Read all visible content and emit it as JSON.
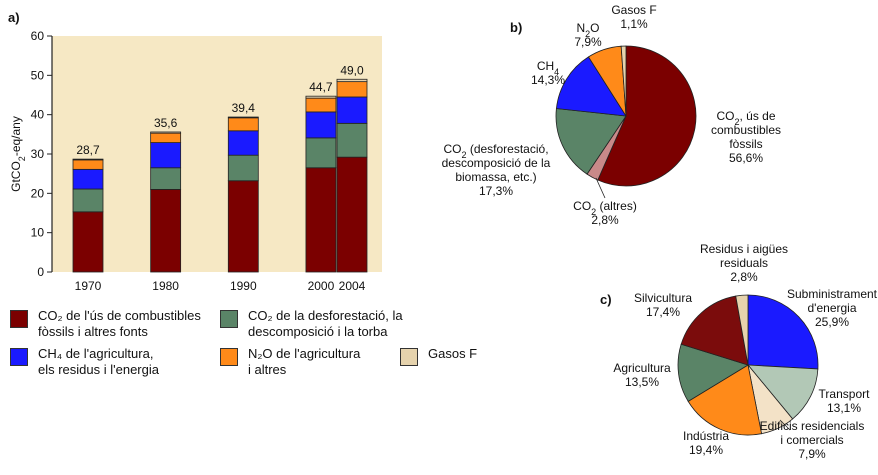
{
  "labels": {
    "a": "a)",
    "b": "b)",
    "c": "c)"
  },
  "colors": {
    "co2_fossil": "#7b0000",
    "co2_deforest": "#5a8467",
    "ch4": "#1a1aff",
    "n2o": "#ff8a19",
    "gases_f": "#e6d3ad",
    "co2_other": "#c98989",
    "silviculture": "#7b0c0c",
    "agriculture": "#5a8467",
    "industry": "#ff8a19",
    "buildings": "#f3e2c7",
    "transport": "#b2c8b6",
    "energy": "#1a1aff",
    "waste": "#e6d3ad",
    "plot_bg": "#f6e8c4"
  },
  "chart_data": [
    {
      "type": "bar",
      "ylabel": "GtCO2-eq/any",
      "ylim": [
        0,
        60
      ],
      "yticks": [
        0,
        10,
        20,
        30,
        40,
        50,
        60
      ],
      "categories": [
        "1970",
        "1980",
        "1990",
        "2000",
        "2004"
      ],
      "totals": [
        "28,7",
        "35,6",
        "39,4",
        "44,7",
        "49,0"
      ],
      "series": [
        {
          "name": "CO2 de l'ús de combustibles fòssils i altres fonts",
          "values": [
            15.3,
            21.0,
            23.2,
            26.5,
            29.2
          ]
        },
        {
          "name": "CO2 de la desforestació, la descomposició i la torba",
          "values": [
            5.8,
            5.5,
            6.5,
            7.6,
            8.6
          ]
        },
        {
          "name": "CH4 de l'agricultura, els residus i l'energia",
          "values": [
            5.0,
            6.4,
            6.2,
            6.6,
            6.7
          ]
        },
        {
          "name": "N2O de l'agricultura i altres",
          "values": [
            2.4,
            2.4,
            3.3,
            3.5,
            3.9
          ]
        },
        {
          "name": "Gasos F",
          "values": [
            0.2,
            0.3,
            0.2,
            0.5,
            0.6
          ]
        }
      ],
      "legend": [
        {
          "text": "CO₂ de l'ús de combustibles\nfòssils i altres fonts",
          "color": "co2_fossil"
        },
        {
          "text": "CO₂ de la desforestació, la\ndescomposició i la torba",
          "color": "co2_deforest"
        },
        {
          "text": "CH₄ de l'agricultura,\nels residus i l'energia",
          "color": "ch4"
        },
        {
          "text": "N₂O de l'agricultura\ni altres",
          "color": "n2o"
        },
        {
          "text": "Gasos F",
          "color": "gases_f"
        }
      ]
    },
    {
      "type": "pie",
      "slices": [
        {
          "name": "CO₂, ús de combustibles fòssils",
          "value": 56.6,
          "color": "co2_fossil",
          "label": [
            "CO₂, ús de",
            "combustibles",
            "fòssils",
            "56,6%"
          ]
        },
        {
          "name": "CO₂ (altres)",
          "value": 2.8,
          "color": "co2_other",
          "label": [
            "CO₂ (altres)",
            "2,8%"
          ]
        },
        {
          "name": "CO₂ (desforestació, descomposició de la biomassa, etc.)",
          "value": 17.3,
          "color": "co2_deforest",
          "label": [
            "CO₂ (desforestació,",
            "descomposició de la",
            "biomassa, etc.)",
            "17,3%"
          ]
        },
        {
          "name": "CH₄",
          "value": 14.3,
          "color": "ch4",
          "label": [
            "CH₄",
            "14,3%"
          ]
        },
        {
          "name": "N₂O",
          "value": 7.9,
          "color": "n2o",
          "label": [
            "N₂O",
            "7,9%"
          ]
        },
        {
          "name": "Gasos F",
          "value": 1.1,
          "color": "gases_f",
          "label": [
            "Gasos F",
            "1,1%"
          ]
        }
      ]
    },
    {
      "type": "pie",
      "slices": [
        {
          "name": "Subministrament d'energia",
          "value": 25.9,
          "color": "energy",
          "label": [
            "Subministrament",
            "d'energia",
            "25,9%"
          ]
        },
        {
          "name": "Transport",
          "value": 13.1,
          "color": "transport",
          "label": [
            "Transport",
            "13,1%"
          ]
        },
        {
          "name": "Edificis residencials i comercials",
          "value": 7.9,
          "color": "buildings",
          "label": [
            "Edificis residencials",
            "i comercials",
            "7,9%"
          ]
        },
        {
          "name": "Indústria",
          "value": 19.4,
          "color": "industry",
          "label": [
            "Indústria",
            "19,4%"
          ]
        },
        {
          "name": "Agricultura",
          "value": 13.5,
          "color": "agriculture",
          "label": [
            "Agricultura",
            "13,5%"
          ]
        },
        {
          "name": "Silvicultura",
          "value": 17.4,
          "color": "silviculture",
          "label": [
            "Silvicultura",
            "17,4%"
          ]
        },
        {
          "name": "Residus i aigües residuals",
          "value": 2.8,
          "color": "waste",
          "label": [
            "Residus i aigües",
            "residuals",
            "2,8%"
          ]
        }
      ]
    }
  ]
}
